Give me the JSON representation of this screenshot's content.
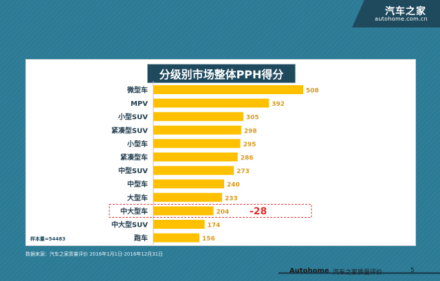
{
  "branding": {
    "name": "汽车之家",
    "url": "autohome.com.cn"
  },
  "notes": {
    "sample": "样本量=54483",
    "source": "数据来源：汽车之家质量评价 2016年1月1日-2016年12月31日"
  },
  "footer": {
    "brand": "Autohome",
    "title": "汽车之家质量评价",
    "page": "5"
  },
  "colors": {
    "bar": "#ffc000",
    "value": "#d89a1d",
    "highlight": "#e52b2b",
    "background": "#2c7b96",
    "dark": "#1f4a5e"
  },
  "chart_data": {
    "type": "bar",
    "orientation": "horizontal",
    "title": "分级别市场整体PPH得分",
    "categories": [
      "微型车",
      "MPV",
      "小型SUV",
      "紧凑型SUV",
      "小型车",
      "紧凑型车",
      "中型SUV",
      "中型车",
      "大型车",
      "中大型车",
      "中大型SUV",
      "跑车"
    ],
    "values": [
      508,
      392,
      305,
      298,
      295,
      286,
      273,
      240,
      233,
      204,
      174,
      156
    ],
    "xlim": [
      0,
      508
    ],
    "grid": false,
    "legend": "none",
    "highlight": {
      "category": "中大型车",
      "annotation": "-28"
    }
  }
}
